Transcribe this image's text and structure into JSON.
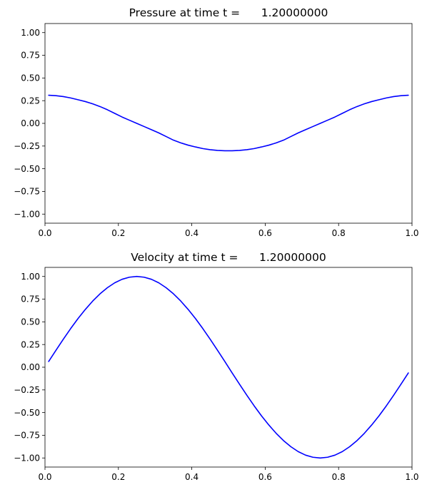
{
  "chart_data": [
    {
      "type": "line",
      "title": "Pressure at time t =      1.20000000",
      "xlabel": "",
      "ylabel": "",
      "xlim": [
        0.0,
        1.0
      ],
      "ylim": [
        -1.1,
        1.1
      ],
      "xticks": [
        "0.0",
        "0.2",
        "0.4",
        "0.6",
        "0.8",
        "1.0"
      ],
      "yticks": [
        "1.00",
        "0.75",
        "0.50",
        "0.25",
        "0.00",
        "−0.25",
        "−0.50",
        "−0.75",
        "−1.00"
      ],
      "grid": false,
      "line_color": "#0000ff",
      "series": [
        {
          "x": [
            0.01,
            0.03,
            0.05,
            0.07,
            0.09,
            0.11,
            0.13,
            0.15,
            0.17,
            0.19,
            0.21,
            0.23,
            0.25,
            0.27,
            0.29,
            0.31,
            0.33,
            0.35,
            0.37,
            0.39,
            0.41,
            0.43,
            0.45,
            0.47,
            0.49,
            0.51,
            0.53,
            0.55,
            0.57,
            0.59,
            0.61,
            0.63,
            0.65,
            0.67,
            0.69,
            0.71,
            0.73,
            0.75,
            0.77,
            0.79,
            0.81,
            0.83,
            0.85,
            0.87,
            0.89,
            0.91,
            0.93,
            0.95,
            0.97,
            0.99
          ],
          "values": [
            0.31,
            0.305,
            0.295,
            0.28,
            0.26,
            0.24,
            0.215,
            0.185,
            0.15,
            0.11,
            0.07,
            0.035,
            0.0,
            -0.035,
            -0.07,
            -0.105,
            -0.145,
            -0.185,
            -0.215,
            -0.24,
            -0.26,
            -0.278,
            -0.29,
            -0.298,
            -0.302,
            -0.302,
            -0.298,
            -0.29,
            -0.278,
            -0.26,
            -0.24,
            -0.215,
            -0.185,
            -0.145,
            -0.105,
            -0.07,
            -0.035,
            0.0,
            0.035,
            0.07,
            0.11,
            0.15,
            0.185,
            0.215,
            0.24,
            0.26,
            0.28,
            0.295,
            0.305,
            0.31
          ]
        }
      ]
    },
    {
      "type": "line",
      "title": "Velocity at time t =      1.20000000",
      "xlabel": "",
      "ylabel": "",
      "xlim": [
        0.0,
        1.0
      ],
      "ylim": [
        -1.1,
        1.1
      ],
      "xticks": [
        "0.0",
        "0.2",
        "0.4",
        "0.6",
        "0.8",
        "1.0"
      ],
      "yticks": [
        "1.00",
        "0.75",
        "0.50",
        "0.25",
        "0.00",
        "−0.25",
        "−0.50",
        "−0.75",
        "−1.00"
      ],
      "grid": false,
      "line_color": "#0000ff",
      "series": [
        {
          "x": [
            0.01,
            0.03,
            0.05,
            0.07,
            0.09,
            0.11,
            0.13,
            0.15,
            0.17,
            0.19,
            0.21,
            0.23,
            0.25,
            0.27,
            0.29,
            0.31,
            0.33,
            0.35,
            0.37,
            0.39,
            0.41,
            0.43,
            0.45,
            0.47,
            0.49,
            0.51,
            0.53,
            0.55,
            0.57,
            0.59,
            0.61,
            0.63,
            0.65,
            0.67,
            0.69,
            0.71,
            0.73,
            0.75,
            0.77,
            0.79,
            0.81,
            0.83,
            0.85,
            0.87,
            0.89,
            0.91,
            0.93,
            0.95,
            0.97,
            0.99
          ],
          "values": [
            0.063,
            0.187,
            0.309,
            0.426,
            0.536,
            0.637,
            0.729,
            0.809,
            0.876,
            0.93,
            0.969,
            0.992,
            1.0,
            0.992,
            0.969,
            0.93,
            0.876,
            0.809,
            0.729,
            0.637,
            0.536,
            0.426,
            0.309,
            0.187,
            0.063,
            -0.063,
            -0.187,
            -0.309,
            -0.426,
            -0.536,
            -0.637,
            -0.729,
            -0.809,
            -0.876,
            -0.93,
            -0.969,
            -0.992,
            -1.0,
            -0.992,
            -0.969,
            -0.93,
            -0.876,
            -0.809,
            -0.729,
            -0.637,
            -0.536,
            -0.426,
            -0.309,
            -0.187,
            -0.063
          ]
        }
      ]
    }
  ]
}
